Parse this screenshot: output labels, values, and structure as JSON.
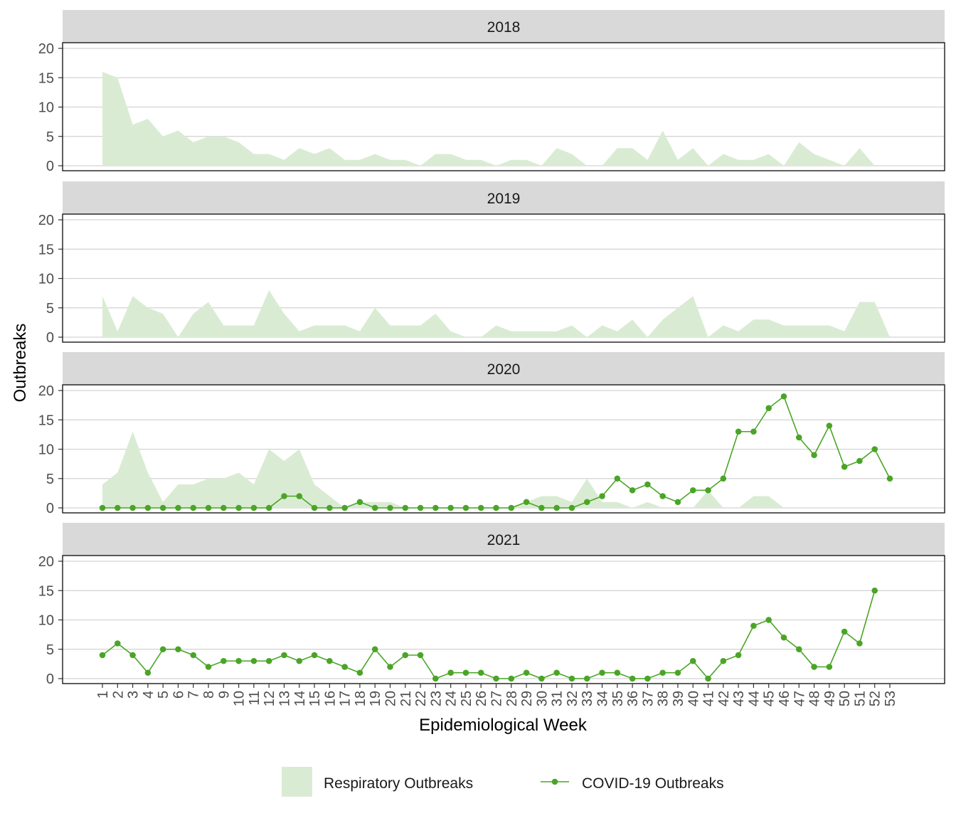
{
  "chart_data": {
    "type": "area",
    "xlabel": "Epidemiological Week",
    "ylabel": "Outbreaks",
    "x_ticks": [
      1,
      2,
      3,
      4,
      5,
      6,
      7,
      8,
      9,
      10,
      11,
      12,
      13,
      14,
      15,
      16,
      17,
      18,
      19,
      20,
      21,
      22,
      23,
      24,
      25,
      26,
      27,
      28,
      29,
      30,
      31,
      32,
      33,
      34,
      35,
      36,
      37,
      38,
      39,
      40,
      41,
      42,
      43,
      44,
      45,
      46,
      47,
      48,
      49,
      50,
      51,
      52,
      53
    ],
    "xlim": [
      1,
      53
    ],
    "ylim": [
      0,
      20
    ],
    "y_ticks": [
      0,
      5,
      10,
      15,
      20
    ],
    "grid": true,
    "legend_position": "bottom",
    "colors": {
      "respiratory": "#d9ecd3",
      "covid": "#4aa526"
    },
    "legend": [
      {
        "name": "Respiratory Outbreaks",
        "type": "area"
      },
      {
        "name": "COVID-19 Outbreaks",
        "type": "line-point"
      }
    ],
    "panels": [
      {
        "label": "2018",
        "respiratory": [
          16,
          15,
          7,
          8,
          5,
          6,
          4,
          5,
          5,
          4,
          2,
          2,
          1,
          3,
          2,
          3,
          1,
          1,
          2,
          1,
          1,
          0,
          2,
          2,
          1,
          1,
          0,
          1,
          1,
          0,
          3,
          2,
          0,
          0,
          3,
          3,
          1,
          6,
          1,
          3,
          0,
          2,
          1,
          1,
          2,
          0,
          4,
          2,
          1,
          0,
          3,
          0
        ],
        "covid": []
      },
      {
        "label": "2019",
        "respiratory": [
          7,
          1,
          7,
          5,
          4,
          0,
          4,
          6,
          2,
          2,
          2,
          8,
          4,
          1,
          2,
          2,
          2,
          1,
          5,
          2,
          2,
          2,
          4,
          1,
          0,
          0,
          2,
          1,
          1,
          1,
          1,
          2,
          0,
          2,
          1,
          3,
          0,
          3,
          5,
          7,
          0,
          2,
          1,
          3,
          3,
          2,
          2,
          2,
          2,
          1,
          6,
          6,
          0
        ],
        "covid": []
      },
      {
        "label": "2020",
        "respiratory": [
          4,
          6,
          13,
          6,
          1,
          4,
          4,
          5,
          5,
          6,
          4,
          10,
          8,
          10,
          4,
          2,
          0,
          1,
          1,
          1,
          0,
          0,
          0,
          0,
          0,
          0,
          0,
          0,
          1,
          2,
          2,
          1,
          5,
          1,
          1,
          0,
          1,
          0,
          0,
          0,
          3,
          0,
          0,
          2,
          2,
          0
        ],
        "covid": [
          0,
          0,
          0,
          0,
          0,
          0,
          0,
          0,
          0,
          0,
          0,
          0,
          2,
          2,
          0,
          0,
          0,
          1,
          0,
          0,
          0,
          0,
          0,
          0,
          0,
          0,
          0,
          0,
          1,
          0,
          0,
          0,
          1,
          2,
          5,
          3,
          4,
          2,
          1,
          3,
          3,
          5,
          13,
          13,
          17,
          19,
          12,
          9,
          14,
          7,
          8,
          10,
          5
        ]
      },
      {
        "label": "2021",
        "respiratory": [],
        "covid": [
          4,
          6,
          4,
          1,
          5,
          5,
          4,
          2,
          3,
          3,
          3,
          3,
          4,
          3,
          4,
          3,
          2,
          1,
          5,
          2,
          4,
          4,
          0,
          1,
          1,
          1,
          0,
          0,
          1,
          0,
          1,
          0,
          0,
          1,
          1,
          0,
          0,
          1,
          1,
          3,
          0,
          3,
          4,
          9,
          10,
          7,
          5,
          2,
          2,
          8,
          6,
          15
        ]
      }
    ]
  }
}
